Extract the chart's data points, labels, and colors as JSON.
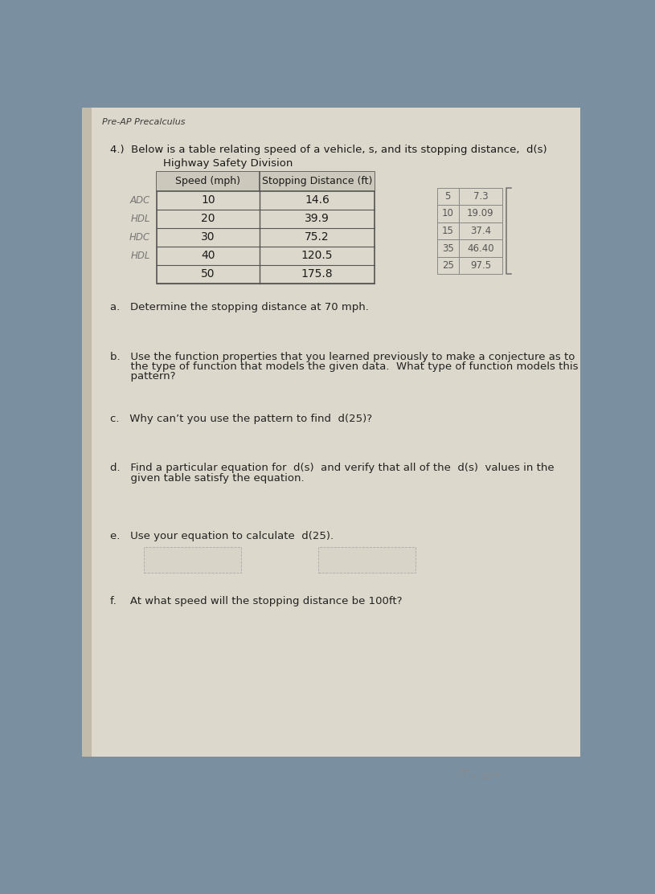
{
  "header": "Pre-AP Precalculus",
  "problem_line": "4.)  Below is a table relating speed of a vehicle, s, and its stopping distance,  d(s)",
  "subtitle": "Highway Safety Division",
  "table_headers": [
    "Speed (mph)",
    "Stopping Distance (ft)"
  ],
  "table_data": [
    [
      "10",
      "14.6"
    ],
    [
      "20",
      "39.9"
    ],
    [
      "30",
      "75.2"
    ],
    [
      "40",
      "120.5"
    ],
    [
      "50",
      "175.8"
    ]
  ],
  "side_labels_left": [
    "ADC",
    "HDL",
    "HDC",
    "HDL"
  ],
  "side_col1": [
    "5",
    "10",
    "15",
    "35",
    "25"
  ],
  "side_col2": [
    "7.3",
    "19.09",
    "37.4",
    "46.40",
    "97.5"
  ],
  "question_a": "a.   Determine the stopping distance at 70 mph.",
  "question_b1": "b.   Use the function properties that you learned previously to make a conjecture as to",
  "question_b2": "      the type of function that models the given data.  What type of function models this",
  "question_b3": "      pattern?",
  "question_c": "c.   Why can’t you use the pattern to find  d(25)?",
  "question_d1": "d.   Find a particular equation for  d(s)  and verify that all of the  d(s)  values in the",
  "question_d2": "      given table satisfy the equation.",
  "question_e": "e.   Use your equation to calculate  d(25).",
  "question_f": "f.    At what speed will the stopping distance be 100ft?",
  "bg_color": "#7a8fa0",
  "paper_color": "#ddd8cc",
  "text_color": "#1a1a1a",
  "table_line_color": "#555555",
  "side_text_color": "#777777",
  "question_text_color": "#222222"
}
